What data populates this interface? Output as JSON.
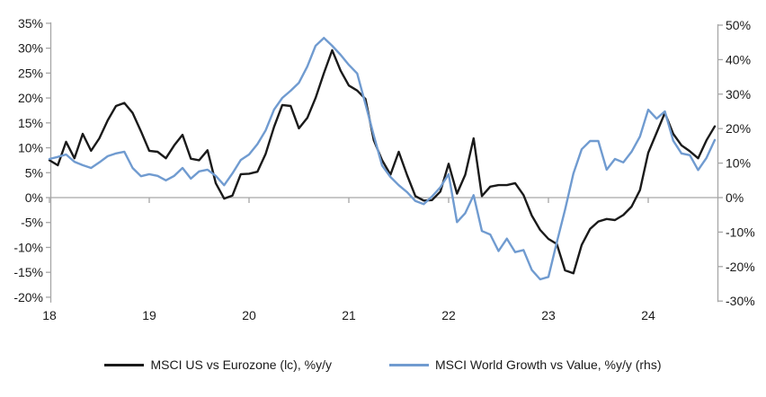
{
  "chart_data": {
    "type": "line",
    "title": "",
    "x_tick_labels": [
      "18",
      "19",
      "20",
      "21",
      "22",
      "23",
      "24"
    ],
    "x_frequency": "monthly",
    "x_range": [
      "2018-01",
      "2024-09"
    ],
    "left_axis": {
      "tick_labels": [
        "35%",
        "30%",
        "25%",
        "20%",
        "15%",
        "10%",
        "5%",
        "0%",
        "-5%",
        "-10%",
        "-15%",
        "-20%"
      ],
      "min": -20,
      "max": 35,
      "step": 5
    },
    "right_axis": {
      "tick_labels": [
        "50%",
        "40%",
        "30%",
        "20%",
        "10%",
        "0%",
        "-10%",
        "-20%",
        "-30%"
      ],
      "min": -30,
      "max": 50,
      "step": 10
    },
    "grid": "off",
    "zero_line": true,
    "legend_position": "bottom-center",
    "series": [
      {
        "name": "MSCI US vs Eurozone (lc), %y/y",
        "axis": "left",
        "color": "#1a1a1a",
        "values": [
          7.5,
          6.5,
          11.2,
          7.9,
          12.8,
          9.4,
          11.9,
          15.5,
          18.4,
          19.0,
          17.0,
          13.3,
          9.4,
          9.2,
          7.9,
          10.5,
          12.6,
          7.8,
          7.5,
          9.5,
          2.9,
          -0.2,
          0.4,
          4.7,
          4.8,
          5.2,
          8.8,
          14.2,
          18.6,
          18.4,
          13.9,
          16.0,
          20.0,
          25.0,
          29.6,
          25.5,
          22.5,
          21.5,
          19.8,
          11.5,
          7.5,
          4.6,
          9.2,
          4.5,
          0.3,
          -0.6,
          -0.5,
          1.2,
          6.8,
          0.8,
          4.6,
          11.9,
          0.3,
          2.2,
          2.5,
          2.5,
          2.9,
          0.5,
          -3.6,
          -6.5,
          -8.3,
          -9.3,
          -14.6,
          -15.2,
          -9.5,
          -6.3,
          -4.8,
          -4.3,
          -4.5,
          -3.5,
          -1.8,
          1.5,
          9.0,
          13.0,
          17.0,
          12.8,
          10.5,
          9.3,
          7.9,
          11.5,
          14.3
        ]
      },
      {
        "name": "MSCI World Growth vs Value, %y/y (rhs)",
        "axis": "right",
        "color": "#709bd0",
        "values": [
          11.2,
          11.8,
          12.5,
          10.4,
          9.4,
          8.6,
          10.2,
          12.0,
          12.8,
          13.3,
          8.6,
          6.2,
          6.8,
          6.3,
          5.0,
          6.3,
          8.6,
          5.5,
          7.6,
          8.1,
          6.3,
          3.6,
          7.0,
          10.9,
          12.5,
          15.5,
          19.5,
          25.5,
          28.9,
          31.0,
          33.3,
          38.0,
          44.0,
          46.3,
          44.0,
          41.4,
          38.5,
          36.0,
          27.1,
          18.0,
          9.3,
          6.0,
          3.6,
          1.6,
          -1.0,
          -1.9,
          0.3,
          3.0,
          6.8,
          -7.1,
          -4.5,
          0.7,
          -9.7,
          -10.7,
          -15.5,
          -11.9,
          -15.8,
          -15.2,
          -21.0,
          -23.7,
          -23.0,
          -13.0,
          -3.5,
          7.0,
          14.0,
          16.4,
          16.4,
          8.1,
          11.2,
          10.2,
          13.3,
          17.7,
          25.5,
          22.9,
          25.0,
          16.5,
          12.8,
          12.3,
          8.0,
          11.5,
          16.7
        ]
      }
    ],
    "axis_color": "#a6a6a6",
    "zero_line_color": "#a6a6a6"
  }
}
